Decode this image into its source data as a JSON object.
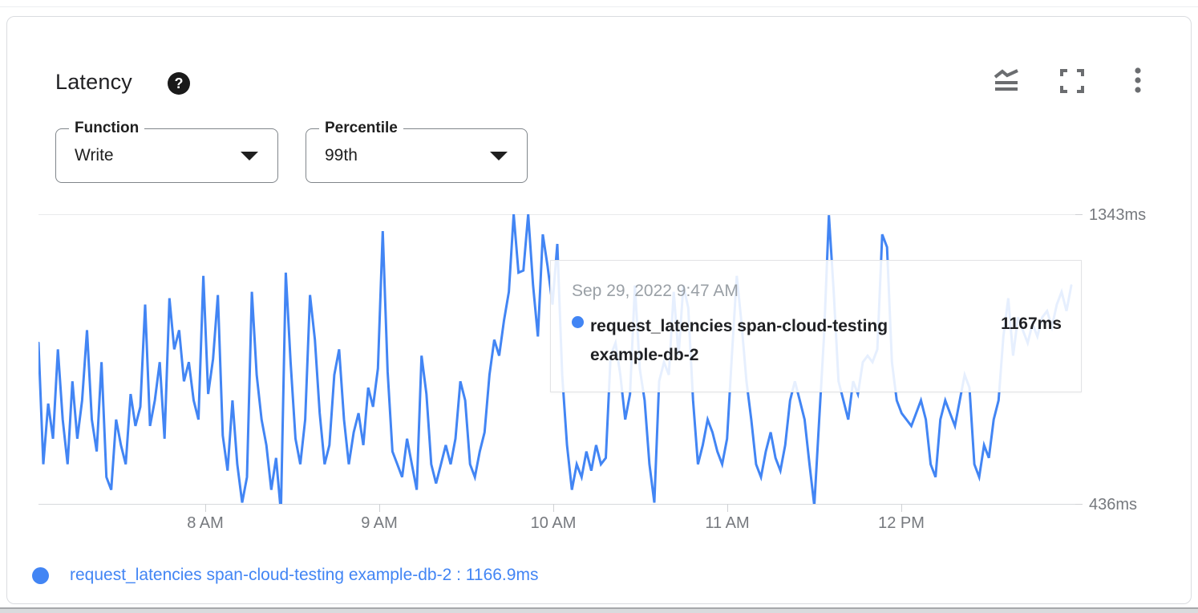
{
  "card": {
    "title": "Latency",
    "help_icon_glyph": "?",
    "toolbar_icons": [
      "chart-series-icon",
      "fullscreen-icon",
      "more-options-icon"
    ]
  },
  "filters": {
    "function": {
      "label": "Function",
      "value": "Write"
    },
    "percentile": {
      "label": "Percentile",
      "value": "99th"
    }
  },
  "tooltip": {
    "timestamp": "Sep 29, 2022 9:47 AM",
    "series_line1": "request_latencies span-cloud-testing",
    "series_line2": "example-db-2",
    "value": "1167ms"
  },
  "legend": {
    "text": "request_latencies span-cloud-testing example-db-2 : 1166.9ms"
  },
  "axes": {
    "y_max_label": "1343ms",
    "y_min_label": "436ms",
    "x_labels": [
      "8 AM",
      "9 AM",
      "10 AM",
      "11 AM",
      "12 PM"
    ]
  },
  "colors": {
    "line": "#4285f4",
    "legend": "#4285f4",
    "axis_text": "#76797e",
    "tooltip_date": "#9aa0a6"
  },
  "chart_data": {
    "type": "line",
    "title": "Latency",
    "series": [
      {
        "name": "request_latencies span-cloud-testing example-db-2",
        "unit": "ms",
        "values": [
          940,
          560,
          750,
          640,
          920,
          700,
          560,
          820,
          640,
          760,
          980,
          700,
          600,
          880,
          520,
          480,
          700,
          620,
          560,
          780,
          680,
          740,
          1060,
          680,
          760,
          880,
          640,
          1080,
          920,
          980,
          820,
          880,
          760,
          700,
          1150,
          780,
          890,
          1090,
          650,
          540,
          760,
          560,
          440,
          520,
          1100,
          840,
          700,
          620,
          480,
          580,
          410,
          1160,
          880,
          640,
          560,
          700,
          1090,
          950,
          720,
          560,
          620,
          840,
          920,
          700,
          560,
          660,
          720,
          620,
          800,
          740,
          860,
          1290,
          850,
          600,
          560,
          520,
          640,
          560,
          480,
          900,
          780,
          560,
          500,
          560,
          620,
          560,
          640,
          820,
          760,
          560,
          520,
          600,
          660,
          840,
          950,
          900,
          1010,
          1100,
          1343,
          1160,
          1167,
          1343,
          1120,
          960,
          1280,
          1180,
          1060,
          1250,
          840,
          620,
          480,
          560,
          520,
          600,
          540,
          620,
          560,
          580,
          900,
          940,
          840,
          700,
          780,
          1120,
          860,
          760,
          560,
          440,
          820,
          880,
          840,
          1100,
          900,
          1120,
          1050,
          760,
          560,
          620,
          700,
          660,
          600,
          560,
          640,
          900,
          1150,
          1000,
          820,
          700,
          560,
          520,
          600,
          660,
          580,
          540,
          620,
          760,
          820,
          760,
          700,
          560,
          430,
          700,
          960,
          1340,
          1100,
          820,
          760,
          700,
          820,
          780,
          880,
          900,
          880,
          920,
          1280,
          1240,
          880,
          760,
          720,
          700,
          680,
          720,
          760,
          700,
          560,
          520,
          700,
          760,
          720,
          680,
          760,
          840,
          800,
          560,
          520,
          620,
          580,
          700,
          760,
          960,
          1080,
          900,
          1020,
          980,
          940,
          1000,
          960,
          1020,
          1040,
          990,
          1060,
          1100,
          1040,
          1120
        ]
      }
    ],
    "highlighted_point": {
      "time": "Sep 29, 2022 9:47 AM",
      "value_ms": 1167
    },
    "ylim": [
      436,
      1343
    ],
    "y_tick_labels": [
      "1343ms",
      "436ms"
    ],
    "x_tick_labels": [
      "8 AM",
      "9 AM",
      "10 AM",
      "11 AM",
      "12 PM"
    ],
    "grid": "horizontal-only",
    "legend_position": "bottom"
  }
}
